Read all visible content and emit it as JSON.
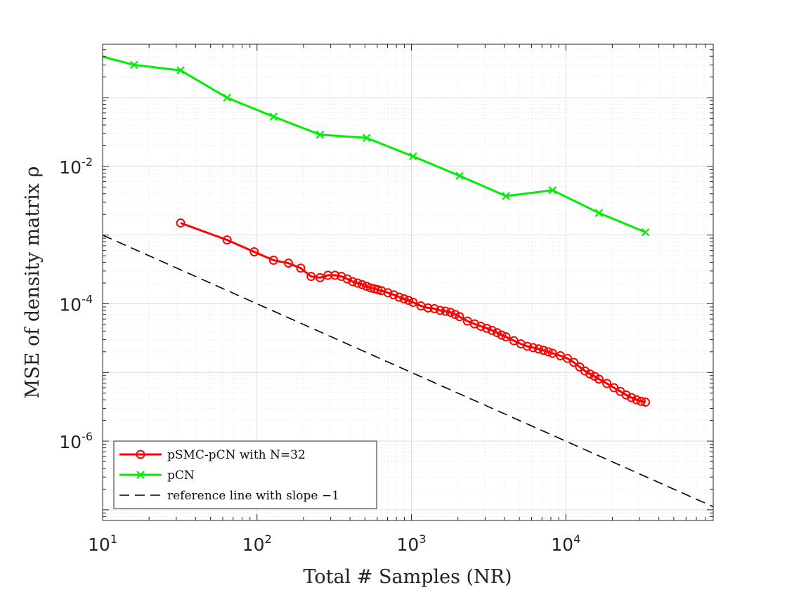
{
  "chart_data": {
    "type": "line",
    "xlabel": "Total # Samples (NR)",
    "ylabel": "MSE of density matrix ρ",
    "xscale": "log",
    "yscale": "log",
    "xlim": [
      10,
      90000
    ],
    "ylim": [
      7e-08,
      0.6
    ],
    "grid": true,
    "minor_grid": true,
    "legend_position": "bottom-left",
    "x_ticks": [
      {
        "value": 10,
        "base": "10",
        "exp": "1"
      },
      {
        "value": 100,
        "base": "10",
        "exp": "2"
      },
      {
        "value": 1000,
        "base": "10",
        "exp": "3"
      },
      {
        "value": 10000,
        "base": "10",
        "exp": "4"
      }
    ],
    "y_ticks": [
      {
        "value": 1e-06,
        "base": "10",
        "exp": "-6"
      },
      {
        "value": 0.0001,
        "base": "10",
        "exp": "-4"
      },
      {
        "value": 0.01,
        "base": "10",
        "exp": "-2"
      }
    ],
    "series": [
      {
        "name": "pSMC-pCN with N=32",
        "color": "#ff0000",
        "marker": "circle",
        "x": [
          32,
          64,
          96,
          128,
          160,
          192,
          224,
          256,
          288,
          320,
          352,
          384,
          416,
          448,
          480,
          512,
          544,
          576,
          608,
          640,
          704,
          768,
          832,
          896,
          960,
          1024,
          1152,
          1280,
          1408,
          1536,
          1664,
          1792,
          1920,
          2048,
          2304,
          2560,
          2816,
          3072,
          3328,
          3584,
          3840,
          4096,
          4608,
          5120,
          5632,
          6144,
          6656,
          7168,
          7680,
          8192,
          9216,
          10240,
          11264,
          12288,
          13312,
          14336,
          15360,
          16384,
          18432,
          20480,
          22528,
          24576,
          26624,
          28672,
          30720,
          32768
        ],
        "y": [
          0.0015,
          0.00085,
          0.00057,
          0.00043,
          0.00039,
          0.00033,
          0.00025,
          0.00024,
          0.00026,
          0.00026,
          0.00025,
          0.00023,
          0.00021,
          0.0002,
          0.00019,
          0.00018,
          0.00017,
          0.000165,
          0.00016,
          0.000155,
          0.000145,
          0.000135,
          0.000125,
          0.000118,
          0.000112,
          0.000105,
          9.3e-05,
          8.7e-05,
          8.5e-05,
          8e-05,
          7.8e-05,
          7.5e-05,
          7e-05,
          6.5e-05,
          5.6e-05,
          5.1e-05,
          4.7e-05,
          4.4e-05,
          4.1e-05,
          3.8e-05,
          3.5e-05,
          3.3e-05,
          2.9e-05,
          2.6e-05,
          2.4e-05,
          2.3e-05,
          2.2e-05,
          2.1e-05,
          2e-05,
          1.9e-05,
          1.75e-05,
          1.6e-05,
          1.4e-05,
          1.2e-05,
          1.05e-05,
          9.5e-06,
          8.8e-06,
          8e-06,
          6.9e-06,
          6e-06,
          5.3e-06,
          4.7e-06,
          4.3e-06,
          4e-06,
          3.8e-06,
          3.7e-06
        ]
      },
      {
        "name": "pCN",
        "color": "#00ee00",
        "marker": "x",
        "x": [
          8,
          16,
          32,
          64,
          128,
          256,
          512,
          1024,
          2048,
          4096,
          8192,
          16384,
          32768
        ],
        "y": [
          0.45,
          0.3,
          0.25,
          0.1,
          0.053,
          0.029,
          0.026,
          0.014,
          0.0073,
          0.0037,
          0.0045,
          0.0021,
          0.0011
        ]
      },
      {
        "name": "reference line with slope −1",
        "color": "#000000",
        "line_style": "dashed",
        "x": [
          10,
          90000
        ],
        "y": [
          0.001,
          1.11e-07
        ]
      }
    ]
  }
}
